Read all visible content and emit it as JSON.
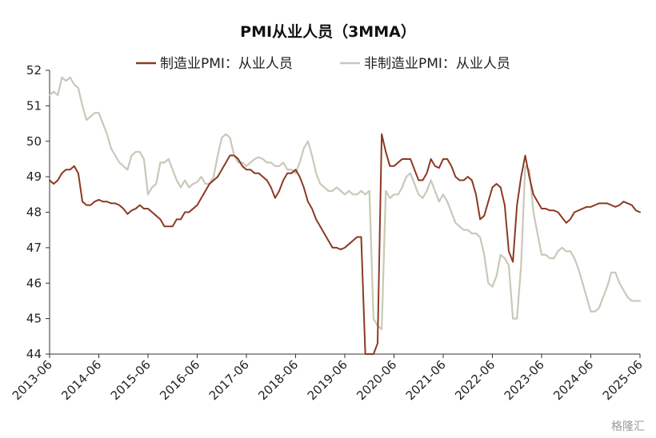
{
  "chart_data": {
    "type": "line",
    "title": "PMI从业人员（3MMA）",
    "xlabel": "",
    "ylabel": "",
    "ylim": [
      44,
      52
    ],
    "yticks": [
      44,
      45,
      46,
      47,
      48,
      49,
      50,
      51,
      52
    ],
    "legend_position": "top-center",
    "grid": false,
    "x_tick_labels": [
      "2013-06",
      "2014-06",
      "2015-06",
      "2016-06",
      "2017-06",
      "2018-06",
      "2019-06",
      "2020-06",
      "2021-06",
      "2022-06",
      "2023-06",
      "2024-06",
      "2025-06"
    ],
    "x_start": "2013-06",
    "x_end": "2025-06",
    "series": [
      {
        "name": "制造业PMI：从业人员",
        "color": "#8b3a22",
        "points": [
          [
            "2013-06",
            48.9
          ],
          [
            "2013-07",
            48.8
          ],
          [
            "2013-08",
            48.9
          ],
          [
            "2013-09",
            49.1
          ],
          [
            "2013-10",
            49.2
          ],
          [
            "2013-11",
            49.2
          ],
          [
            "2013-12",
            49.3
          ],
          [
            "2014-01",
            49.1
          ],
          [
            "2014-02",
            48.3
          ],
          [
            "2014-03",
            48.2
          ],
          [
            "2014-04",
            48.2
          ],
          [
            "2014-05",
            48.3
          ],
          [
            "2014-06",
            48.35
          ],
          [
            "2014-07",
            48.3
          ],
          [
            "2014-08",
            48.3
          ],
          [
            "2014-09",
            48.25
          ],
          [
            "2014-10",
            48.25
          ],
          [
            "2014-11",
            48.2
          ],
          [
            "2014-12",
            48.1
          ],
          [
            "2015-01",
            47.95
          ],
          [
            "2015-02",
            48.05
          ],
          [
            "2015-03",
            48.1
          ],
          [
            "2015-04",
            48.2
          ],
          [
            "2015-05",
            48.1
          ],
          [
            "2015-06",
            48.1
          ],
          [
            "2015-07",
            48.0
          ],
          [
            "2015-08",
            47.9
          ],
          [
            "2015-09",
            47.8
          ],
          [
            "2015-10",
            47.6
          ],
          [
            "2015-11",
            47.6
          ],
          [
            "2015-12",
            47.6
          ],
          [
            "2016-01",
            47.8
          ],
          [
            "2016-02",
            47.8
          ],
          [
            "2016-03",
            48.0
          ],
          [
            "2016-04",
            48.0
          ],
          [
            "2016-05",
            48.1
          ],
          [
            "2016-06",
            48.2
          ],
          [
            "2016-07",
            48.4
          ],
          [
            "2016-08",
            48.6
          ],
          [
            "2016-09",
            48.8
          ],
          [
            "2016-10",
            48.9
          ],
          [
            "2016-11",
            49.0
          ],
          [
            "2016-12",
            49.2
          ],
          [
            "2017-01",
            49.4
          ],
          [
            "2017-02",
            49.6
          ],
          [
            "2017-03",
            49.6
          ],
          [
            "2017-04",
            49.5
          ],
          [
            "2017-05",
            49.3
          ],
          [
            "2017-06",
            49.2
          ],
          [
            "2017-07",
            49.2
          ],
          [
            "2017-08",
            49.1
          ],
          [
            "2017-09",
            49.1
          ],
          [
            "2017-10",
            49.0
          ],
          [
            "2017-11",
            48.9
          ],
          [
            "2017-12",
            48.7
          ],
          [
            "2018-01",
            48.4
          ],
          [
            "2018-02",
            48.6
          ],
          [
            "2018-03",
            48.9
          ],
          [
            "2018-04",
            49.1
          ],
          [
            "2018-05",
            49.1
          ],
          [
            "2018-06",
            49.2
          ],
          [
            "2018-07",
            49.0
          ],
          [
            "2018-08",
            48.7
          ],
          [
            "2018-09",
            48.3
          ],
          [
            "2018-10",
            48.1
          ],
          [
            "2018-11",
            47.8
          ],
          [
            "2018-12",
            47.6
          ],
          [
            "2019-01",
            47.4
          ],
          [
            "2019-02",
            47.2
          ],
          [
            "2019-03",
            47.0
          ],
          [
            "2019-04",
            47.0
          ],
          [
            "2019-05",
            46.95
          ],
          [
            "2019-06",
            47.0
          ],
          [
            "2019-07",
            47.1
          ],
          [
            "2019-08",
            47.2
          ],
          [
            "2019-09",
            47.3
          ],
          [
            "2019-10",
            47.3
          ],
          [
            "2019-11",
            44.0
          ],
          [
            "2019-12",
            44.0
          ],
          [
            "2020-01",
            44.0
          ],
          [
            "2020-02",
            44.3
          ],
          [
            "2020-03",
            50.2
          ],
          [
            "2020-04",
            49.7
          ],
          [
            "2020-05",
            49.3
          ],
          [
            "2020-06",
            49.3
          ],
          [
            "2020-07",
            49.4
          ],
          [
            "2020-08",
            49.5
          ],
          [
            "2020-09",
            49.5
          ],
          [
            "2020-10",
            49.5
          ],
          [
            "2020-11",
            49.2
          ],
          [
            "2020-12",
            48.9
          ],
          [
            "2021-01",
            48.9
          ],
          [
            "2021-02",
            49.1
          ],
          [
            "2021-03",
            49.5
          ],
          [
            "2021-04",
            49.3
          ],
          [
            "2021-05",
            49.25
          ],
          [
            "2021-06",
            49.5
          ],
          [
            "2021-07",
            49.5
          ],
          [
            "2021-08",
            49.3
          ],
          [
            "2021-09",
            49.0
          ],
          [
            "2021-10",
            48.9
          ],
          [
            "2021-11",
            48.9
          ],
          [
            "2021-12",
            49.0
          ],
          [
            "2022-01",
            48.9
          ],
          [
            "2022-02",
            48.5
          ],
          [
            "2022-03",
            47.8
          ],
          [
            "2022-04",
            47.9
          ],
          [
            "2022-05",
            48.3
          ],
          [
            "2022-06",
            48.7
          ],
          [
            "2022-07",
            48.8
          ],
          [
            "2022-08",
            48.7
          ],
          [
            "2022-09",
            48.2
          ],
          [
            "2022-10",
            46.9
          ],
          [
            "2022-11",
            46.6
          ],
          [
            "2022-12",
            48.2
          ],
          [
            "2023-01",
            49.0
          ],
          [
            "2023-02",
            49.6
          ],
          [
            "2023-03",
            49.0
          ],
          [
            "2023-04",
            48.5
          ],
          [
            "2023-05",
            48.3
          ],
          [
            "2023-06",
            48.1
          ],
          [
            "2023-07",
            48.1
          ],
          [
            "2023-08",
            48.05
          ],
          [
            "2023-09",
            48.05
          ],
          [
            "2023-10",
            48.0
          ],
          [
            "2023-11",
            47.85
          ],
          [
            "2023-12",
            47.7
          ],
          [
            "2024-01",
            47.8
          ],
          [
            "2024-02",
            48.0
          ],
          [
            "2024-03",
            48.05
          ],
          [
            "2024-04",
            48.1
          ],
          [
            "2024-05",
            48.15
          ],
          [
            "2024-06",
            48.15
          ],
          [
            "2024-07",
            48.2
          ],
          [
            "2024-08",
            48.25
          ],
          [
            "2024-09",
            48.25
          ],
          [
            "2024-10",
            48.25
          ],
          [
            "2024-11",
            48.2
          ],
          [
            "2024-12",
            48.15
          ],
          [
            "2025-01",
            48.2
          ],
          [
            "2025-02",
            48.3
          ],
          [
            "2025-03",
            48.25
          ],
          [
            "2025-04",
            48.2
          ],
          [
            "2025-05",
            48.05
          ],
          [
            "2025-06",
            48.0
          ]
        ]
      },
      {
        "name": "非制造业PMI：从业人员",
        "color": "#c8c9b8",
        "points": [
          [
            "2013-06",
            51.3
          ],
          [
            "2013-07",
            51.4
          ],
          [
            "2013-08",
            51.3
          ],
          [
            "2013-09",
            51.8
          ],
          [
            "2013-10",
            51.7
          ],
          [
            "2013-11",
            51.8
          ],
          [
            "2013-12",
            51.6
          ],
          [
            "2014-01",
            51.5
          ],
          [
            "2014-02",
            51.0
          ],
          [
            "2014-03",
            50.6
          ],
          [
            "2014-04",
            50.7
          ],
          [
            "2014-05",
            50.8
          ],
          [
            "2014-06",
            50.8
          ],
          [
            "2014-07",
            50.5
          ],
          [
            "2014-08",
            50.2
          ],
          [
            "2014-09",
            49.8
          ],
          [
            "2014-10",
            49.6
          ],
          [
            "2014-11",
            49.4
          ],
          [
            "2014-12",
            49.3
          ],
          [
            "2015-01",
            49.2
          ],
          [
            "2015-02",
            49.6
          ],
          [
            "2015-03",
            49.7
          ],
          [
            "2015-04",
            49.7
          ],
          [
            "2015-05",
            49.5
          ],
          [
            "2015-06",
            48.5
          ],
          [
            "2015-07",
            48.7
          ],
          [
            "2015-08",
            48.8
          ],
          [
            "2015-09",
            49.4
          ],
          [
            "2015-10",
            49.4
          ],
          [
            "2015-11",
            49.5
          ],
          [
            "2015-12",
            49.2
          ],
          [
            "2016-01",
            48.9
          ],
          [
            "2016-02",
            48.7
          ],
          [
            "2016-03",
            48.9
          ],
          [
            "2016-04",
            48.7
          ],
          [
            "2016-05",
            48.8
          ],
          [
            "2016-06",
            48.85
          ],
          [
            "2016-07",
            49.0
          ],
          [
            "2016-08",
            48.8
          ],
          [
            "2016-09",
            48.8
          ],
          [
            "2016-10",
            49.0
          ],
          [
            "2016-11",
            49.6
          ],
          [
            "2016-12",
            50.1
          ],
          [
            "2017-01",
            50.2
          ],
          [
            "2017-02",
            50.1
          ],
          [
            "2017-03",
            49.6
          ],
          [
            "2017-04",
            49.4
          ],
          [
            "2017-05",
            49.4
          ],
          [
            "2017-06",
            49.3
          ],
          [
            "2017-07",
            49.4
          ],
          [
            "2017-08",
            49.5
          ],
          [
            "2017-09",
            49.55
          ],
          [
            "2017-10",
            49.5
          ],
          [
            "2017-11",
            49.4
          ],
          [
            "2017-12",
            49.4
          ],
          [
            "2018-01",
            49.3
          ],
          [
            "2018-02",
            49.3
          ],
          [
            "2018-03",
            49.4
          ],
          [
            "2018-04",
            49.2
          ],
          [
            "2018-05",
            49.2
          ],
          [
            "2018-06",
            49.1
          ],
          [
            "2018-07",
            49.4
          ],
          [
            "2018-08",
            49.8
          ],
          [
            "2018-09",
            50.0
          ],
          [
            "2018-10",
            49.6
          ],
          [
            "2018-11",
            49.1
          ],
          [
            "2018-12",
            48.8
          ],
          [
            "2019-01",
            48.7
          ],
          [
            "2019-02",
            48.6
          ],
          [
            "2019-03",
            48.6
          ],
          [
            "2019-04",
            48.7
          ],
          [
            "2019-05",
            48.6
          ],
          [
            "2019-06",
            48.5
          ],
          [
            "2019-07",
            48.6
          ],
          [
            "2019-08",
            48.5
          ],
          [
            "2019-09",
            48.5
          ],
          [
            "2019-10",
            48.6
          ],
          [
            "2019-11",
            48.5
          ],
          [
            "2019-12",
            48.6
          ],
          [
            "2020-01",
            45.0
          ],
          [
            "2020-02",
            44.8
          ],
          [
            "2020-03",
            44.7
          ],
          [
            "2020-04",
            48.6
          ],
          [
            "2020-05",
            48.4
          ],
          [
            "2020-06",
            48.5
          ],
          [
            "2020-07",
            48.5
          ],
          [
            "2020-08",
            48.7
          ],
          [
            "2020-09",
            49.0
          ],
          [
            "2020-10",
            49.1
          ],
          [
            "2020-11",
            48.8
          ],
          [
            "2020-12",
            48.5
          ],
          [
            "2021-01",
            48.4
          ],
          [
            "2021-02",
            48.6
          ],
          [
            "2021-03",
            48.9
          ],
          [
            "2021-04",
            48.6
          ],
          [
            "2021-05",
            48.3
          ],
          [
            "2021-06",
            48.5
          ],
          [
            "2021-07",
            48.3
          ],
          [
            "2021-08",
            48.0
          ],
          [
            "2021-09",
            47.7
          ],
          [
            "2021-10",
            47.6
          ],
          [
            "2021-11",
            47.5
          ],
          [
            "2021-12",
            47.5
          ],
          [
            "2022-01",
            47.4
          ],
          [
            "2022-02",
            47.4
          ],
          [
            "2022-03",
            47.3
          ],
          [
            "2022-04",
            46.8
          ],
          [
            "2022-05",
            46.0
          ],
          [
            "2022-06",
            45.9
          ],
          [
            "2022-07",
            46.2
          ],
          [
            "2022-08",
            46.8
          ],
          [
            "2022-09",
            46.7
          ],
          [
            "2022-10",
            46.5
          ],
          [
            "2022-11",
            45.0
          ],
          [
            "2022-12",
            45.0
          ],
          [
            "2023-01",
            46.5
          ],
          [
            "2023-02",
            49.3
          ],
          [
            "2023-03",
            49.2
          ],
          [
            "2023-04",
            48.0
          ],
          [
            "2023-05",
            47.4
          ],
          [
            "2023-06",
            46.8
          ],
          [
            "2023-07",
            46.8
          ],
          [
            "2023-08",
            46.7
          ],
          [
            "2023-09",
            46.7
          ],
          [
            "2023-10",
            46.9
          ],
          [
            "2023-11",
            47.0
          ],
          [
            "2023-12",
            46.9
          ],
          [
            "2024-01",
            46.9
          ],
          [
            "2024-02",
            46.7
          ],
          [
            "2024-03",
            46.4
          ],
          [
            "2024-04",
            46.0
          ],
          [
            "2024-05",
            45.6
          ],
          [
            "2024-06",
            45.2
          ],
          [
            "2024-07",
            45.2
          ],
          [
            "2024-08",
            45.3
          ],
          [
            "2024-09",
            45.6
          ],
          [
            "2024-10",
            45.9
          ],
          [
            "2024-11",
            46.3
          ],
          [
            "2024-12",
            46.3
          ],
          [
            "2025-01",
            46.0
          ],
          [
            "2025-02",
            45.8
          ],
          [
            "2025-03",
            45.6
          ],
          [
            "2025-04",
            45.5
          ],
          [
            "2025-05",
            45.5
          ],
          [
            "2025-06",
            45.5
          ]
        ]
      }
    ]
  },
  "watermark": "格隆汇"
}
